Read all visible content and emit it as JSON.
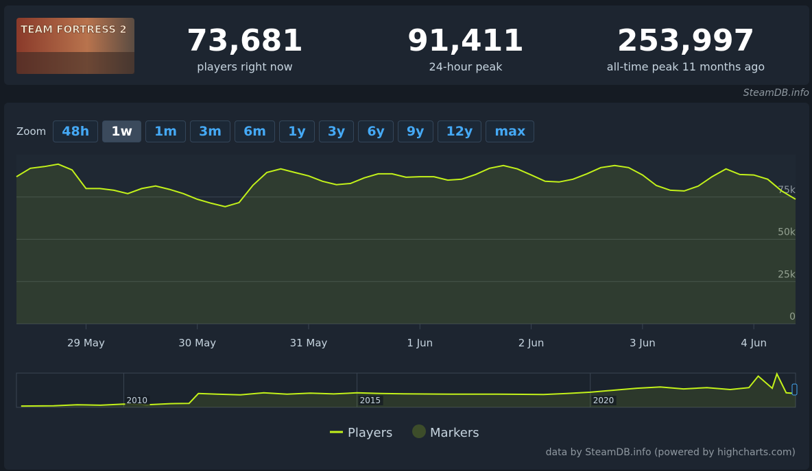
{
  "header": {
    "logo_text": "TEAM FORTRESS 2",
    "stats": [
      {
        "value": "73,681",
        "label": "players right now"
      },
      {
        "value": "91,411",
        "label": "24-hour peak"
      },
      {
        "value": "253,997",
        "label": "all-time peak 11 months ago"
      }
    ]
  },
  "source": "SteamDB.info",
  "zoom": {
    "label": "Zoom",
    "buttons": [
      "48h",
      "1w",
      "1m",
      "3m",
      "6m",
      "1y",
      "3y",
      "6y",
      "9y",
      "12y",
      "max"
    ],
    "active": "1w"
  },
  "chart_data": [
    {
      "type": "line",
      "categories": [
        null,
        null,
        null,
        null,
        null,
        "29 May",
        null,
        null,
        null,
        null,
        null,
        null,
        null,
        "30 May",
        null,
        null,
        null,
        null,
        null,
        null,
        null,
        "31 May",
        null,
        null,
        null,
        null,
        null,
        null,
        null,
        "1 Jun",
        null,
        null,
        null,
        null,
        null,
        null,
        null,
        "2 Jun",
        null,
        null,
        null,
        null,
        null,
        null,
        null,
        "3 Jun",
        null,
        null,
        null,
        null,
        null,
        null,
        null,
        "4 Jun",
        null,
        null,
        null
      ],
      "series": [
        {
          "name": "Players",
          "color": "#c3f21a",
          "values": [
            87000,
            92000,
            93000,
            94400,
            91000,
            80000,
            80000,
            79000,
            77000,
            80000,
            81500,
            79500,
            77000,
            73700,
            71300,
            69300,
            71700,
            82000,
            89500,
            91600,
            89500,
            87500,
            84300,
            82300,
            83000,
            86300,
            88700,
            88700,
            86700,
            87000,
            87000,
            85000,
            85500,
            88300,
            92000,
            93600,
            91600,
            88000,
            84300,
            83900,
            85500,
            88700,
            92400,
            93600,
            92400,
            88000,
            81800,
            79000,
            78600,
            81400,
            87000,
            91600,
            88300,
            88000,
            85500,
            78600,
            73700
          ]
        }
      ],
      "markers": {
        "name": "Markers",
        "color": "#3d4d2a"
      },
      "ylim": [
        0,
        100000
      ],
      "yticks": [
        {
          "value": 0,
          "label": "0"
        },
        {
          "value": 25000,
          "label": "25k"
        },
        {
          "value": 50000,
          "label": "50k"
        },
        {
          "value": 75000,
          "label": "75k"
        }
      ],
      "grid": true
    },
    {
      "type": "line",
      "x": [
        2007.8,
        2008.5,
        2009.0,
        2009.5,
        2010.0,
        2010.5,
        2011.0,
        2011.4,
        2011.6,
        2012.0,
        2012.5,
        2013.0,
        2013.5,
        2014.0,
        2014.5,
        2015.0,
        2015.5,
        2016.0,
        2017.0,
        2018.0,
        2019.0,
        2019.5,
        2020.0,
        2020.5,
        2021.0,
        2021.5,
        2022.0,
        2022.5,
        2023.0,
        2023.4,
        2023.6,
        2023.9,
        2024.0,
        2024.2,
        2024.4
      ],
      "series": [
        {
          "color": "#c3f21a",
          "values": [
            10000,
            12000,
            20000,
            16000,
            25000,
            20000,
            28000,
            30000,
            105000,
            100000,
            95000,
            110000,
            100000,
            108000,
            102000,
            110000,
            105000,
            103000,
            100000,
            100000,
            98000,
            105000,
            115000,
            130000,
            145000,
            155000,
            140000,
            150000,
            135000,
            150000,
            237000,
            145000,
            254000,
            110000,
            105000
          ]
        }
      ],
      "xlim": [
        2007.7,
        2024.4
      ],
      "xticks": [
        2010,
        2015,
        2020
      ],
      "ylim": [
        0,
        260000
      ]
    }
  ],
  "credit": "data by SteamDB.info (powered by highcharts.com)"
}
